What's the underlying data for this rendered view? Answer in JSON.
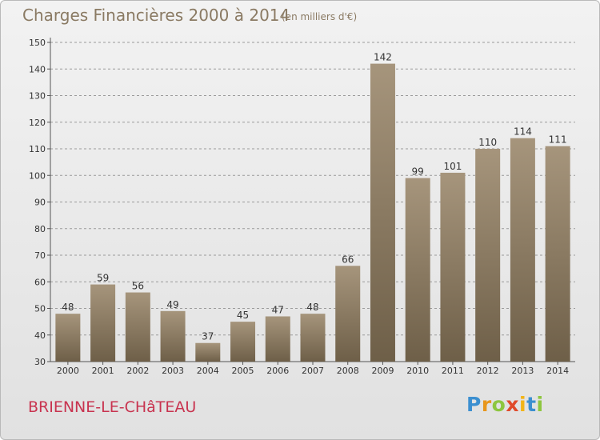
{
  "header": {
    "title": "Charges Financières 2000 à 2014",
    "unit_note": "(en milliers d'€)"
  },
  "footer": {
    "commune": "BRIENNE-LE-CHâTEAU",
    "logo_letters": [
      "P",
      "r",
      "o",
      "x",
      "i",
      "t",
      "i"
    ],
    "logo_colors": [
      "#3b8fd0",
      "#e8961c",
      "#8dc63f",
      "#e04a2a",
      "#f2b417",
      "#3b8fd0",
      "#8dc63f"
    ]
  },
  "colors": {
    "bar_top": "#a6957c",
    "bar_bottom": "#6e5f48",
    "grid": "#9a9a9a",
    "text": "#333333"
  },
  "chart_data": {
    "type": "bar",
    "title": "Charges Financières 2000 à 2014",
    "subtitle": "(en milliers d'€)",
    "categories": [
      "2000",
      "2001",
      "2002",
      "2003",
      "2004",
      "2005",
      "2006",
      "2007",
      "2008",
      "2009",
      "2010",
      "2011",
      "2012",
      "2013",
      "2014"
    ],
    "values": [
      48,
      59,
      56,
      49,
      37,
      45,
      47,
      48,
      66,
      142,
      99,
      101,
      110,
      114,
      111
    ],
    "ylim": [
      30,
      150
    ],
    "yticks": [
      30,
      40,
      50,
      60,
      70,
      80,
      90,
      100,
      110,
      120,
      130,
      140,
      150
    ],
    "grid": true,
    "xlabel": "",
    "ylabel": ""
  }
}
